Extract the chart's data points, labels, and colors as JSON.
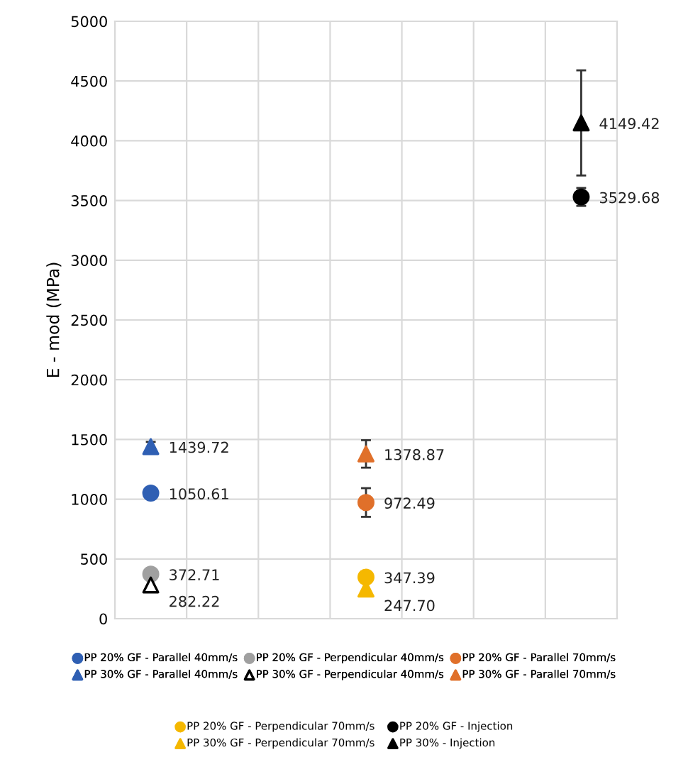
{
  "chart_data": {
    "type": "scatter",
    "ylabel": "E - mod (MPa)",
    "categories": [
      null,
      null,
      null,
      null,
      null,
      null,
      null
    ],
    "ylim": [
      0,
      5000
    ],
    "yticks": [
      0,
      500,
      1000,
      1500,
      2000,
      2500,
      3000,
      3500,
      4000,
      4500,
      5000
    ],
    "grid": true,
    "legend": "bottom",
    "series": [
      {
        "name": "PP 20% GF - Parallel 40mm/s",
        "color": "#2f5fb3",
        "marker": "circle",
        "values": [
          1050.61,
          null,
          null,
          null,
          null,
          null,
          null
        ],
        "value_labels": [
          "1050.61",
          null,
          null,
          null,
          null,
          null,
          null
        ]
      },
      {
        "name": "PP 20% GF - Perpendicular 40mm/s",
        "color": "#a0a0a0",
        "marker": "circle",
        "values": [
          372.71,
          null,
          null,
          null,
          null,
          null,
          null
        ],
        "value_labels": [
          "372.71",
          null,
          null,
          null,
          null,
          null,
          null
        ]
      },
      {
        "name": "PP 20% GF - Parallel 70mm/s",
        "color": "#e0702a",
        "marker": "circle",
        "values": [
          null,
          null,
          null,
          972.49,
          null,
          null,
          null
        ],
        "errors": [
          null,
          null,
          null,
          120,
          null,
          null,
          null
        ],
        "value_labels": [
          null,
          null,
          null,
          "972.49",
          null,
          null,
          null
        ]
      },
      {
        "name": "PP 30% GF - Parallel 40mm/s",
        "color": "#2f5fb3",
        "marker": "triangle",
        "values": [
          1439.72,
          null,
          null,
          null,
          null,
          null,
          null
        ],
        "errors": [
          40,
          null,
          null,
          null,
          null,
          null,
          null
        ],
        "value_labels": [
          "1439.72",
          null,
          null,
          null,
          null,
          null,
          null
        ]
      },
      {
        "name": "PP 30% GF - Perpendicular 40mm/s",
        "color": "#ffffff",
        "marker": "triangle",
        "values": [
          282.22,
          null,
          null,
          null,
          null,
          null,
          null
        ],
        "value_labels": [
          "282.22",
          null,
          null,
          null,
          null,
          null,
          null
        ]
      },
      {
        "name": "PP 30% GF - Parallel 70mm/s",
        "color": "#e0702a",
        "marker": "triangle",
        "values": [
          null,
          null,
          null,
          1378.87,
          null,
          null,
          null
        ],
        "errors": [
          null,
          null,
          null,
          115,
          null,
          null,
          null
        ],
        "value_labels": [
          null,
          null,
          null,
          "1378.87",
          null,
          null,
          null
        ]
      },
      {
        "name": "PP 20% GF - Perpendicular 70mm/s",
        "color": "#f5b800",
        "marker": "circle",
        "values": [
          null,
          null,
          null,
          347.39,
          null,
          null,
          null
        ],
        "value_labels": [
          null,
          null,
          null,
          "347.39",
          null,
          null,
          null
        ]
      },
      {
        "name": "PP 20% GF - Injection",
        "color": "#000000",
        "marker": "circle",
        "values": [
          null,
          null,
          null,
          null,
          null,
          null,
          3529.68
        ],
        "errors": [
          null,
          null,
          null,
          null,
          null,
          null,
          75
        ],
        "value_labels": [
          null,
          null,
          null,
          null,
          null,
          null,
          "3529.68"
        ]
      },
      {
        "name": "PP 30% GF - Perpendicular 70mm/s",
        "color": "#f5b800",
        "marker": "triangle",
        "values": [
          null,
          null,
          null,
          247.7,
          null,
          null,
          null
        ],
        "value_labels": [
          null,
          null,
          null,
          "247.70",
          null,
          null,
          null
        ]
      },
      {
        "name": "PP 30% - Injection",
        "color": "#000000",
        "marker": "triangle",
        "values": [
          null,
          null,
          null,
          null,
          null,
          null,
          4149.42
        ],
        "errors": [
          null,
          null,
          null,
          null,
          null,
          null,
          440
        ],
        "value_labels": [
          null,
          null,
          null,
          null,
          null,
          null,
          "4149.42"
        ]
      }
    ]
  }
}
